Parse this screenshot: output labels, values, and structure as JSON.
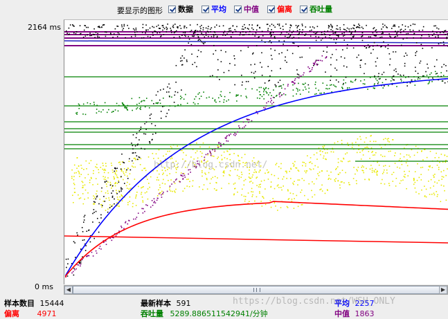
{
  "legend": {
    "title": "要显示的图形",
    "items": [
      {
        "label": "数据",
        "color": "#000000"
      },
      {
        "label": "平均",
        "color": "#0000ff"
      },
      {
        "label": "中值",
        "color": "#800080"
      },
      {
        "label": "偏离",
        "color": "#ff0000"
      },
      {
        "label": "吞吐量",
        "color": "#008000"
      }
    ]
  },
  "axis": {
    "y_max_label": "2164 ms",
    "y_min_label": "0 ms"
  },
  "watermark_center": "http://blog.csdn.net/",
  "watermark_bottom": "https://blog.csdn.net/WSH_ONLY",
  "stats": {
    "samples_label": "样本数目",
    "samples_value": "15444",
    "deviation_label": "偏离",
    "deviation_value": "4971",
    "latest_label": "最新样本",
    "latest_value": "591",
    "throughput_label": "吞吐量",
    "throughput_value": "5289.886511542941/分钟",
    "average_label": "平均",
    "average_value": "2257",
    "median_label": "中值",
    "median_value": "1863"
  },
  "colors": {
    "data": "#000000",
    "average": "#0000ff",
    "median": "#800080",
    "deviation": "#ff0000",
    "throughput": "#008000",
    "scatter2": "#e8e800"
  }
}
